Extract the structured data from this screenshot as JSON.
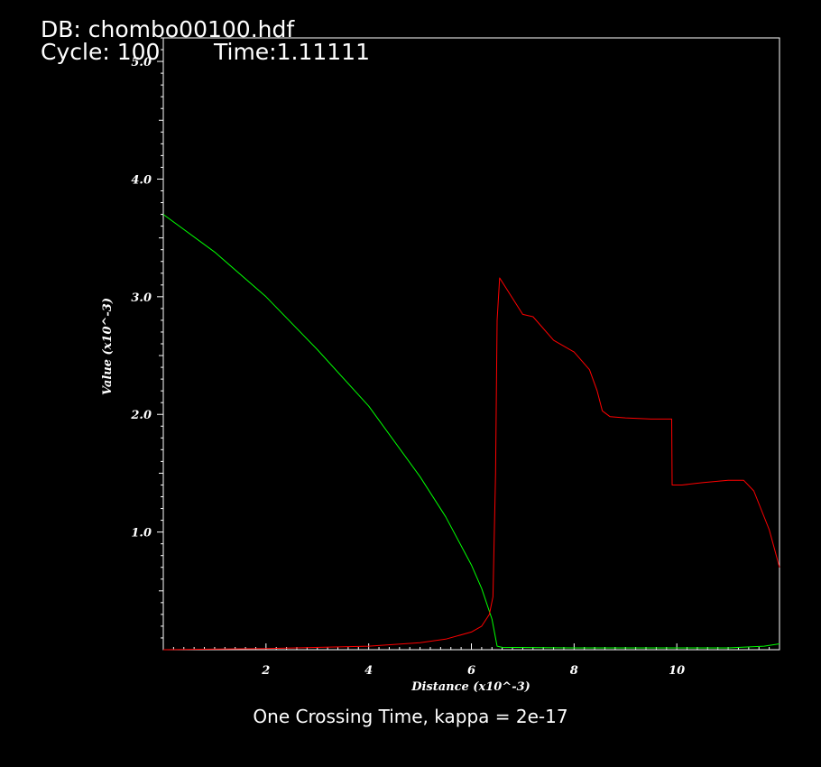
{
  "header": {
    "db_line": "DB: chombo00100.hdf",
    "cycle_line": "Cycle: 100",
    "time_line": "Time:1.11111"
  },
  "caption": "One Crossing Time, kappa = 2e-17",
  "colors": {
    "background": "#000000",
    "axes": "#ffffff",
    "series_red": "#ff0000",
    "series_green": "#00ff00"
  },
  "chart_data": {
    "type": "line",
    "title": "",
    "xlabel": "Distance (x10^-3)",
    "ylabel": "Value (x10^-3)",
    "xlim": [
      0,
      12
    ],
    "ylim": [
      0.0,
      5.2
    ],
    "x_ticks": [
      2,
      4,
      6,
      8,
      10
    ],
    "x_tick_labels": [
      "2",
      "4",
      "6",
      "8",
      "10"
    ],
    "y_ticks": [
      1.0,
      2.0,
      3.0,
      4.0,
      5.0
    ],
    "y_tick_labels": [
      "1.0",
      "2.0",
      "3.0",
      "4.0",
      "5.0"
    ],
    "grid": false,
    "series": [
      {
        "color": "#00ff00",
        "x": [
          0,
          1,
          2,
          3,
          4,
          5,
          5.5,
          6,
          6.2,
          6.4,
          6.5,
          6.6,
          8,
          10,
          11,
          11.7,
          12
        ],
        "y": [
          3.7,
          3.38,
          3.0,
          2.55,
          2.07,
          1.47,
          1.13,
          0.72,
          0.52,
          0.26,
          0.03,
          0.02,
          0.015,
          0.015,
          0.015,
          0.03,
          0.05
        ]
      },
      {
        "color": "#ff0000",
        "x": [
          0,
          2,
          4,
          5,
          5.5,
          6,
          6.2,
          6.35,
          6.42,
          6.47,
          6.5,
          6.55,
          7.0,
          7.2,
          7.3,
          7.6,
          8.0,
          8.3,
          8.45,
          8.55,
          8.7,
          9.0,
          9.5,
          9.9,
          9.91,
          10.1,
          10.5,
          11.0,
          11.3,
          11.5,
          11.8,
          12.0
        ],
        "y": [
          0.0,
          0.01,
          0.03,
          0.06,
          0.09,
          0.15,
          0.2,
          0.3,
          0.45,
          1.5,
          2.8,
          3.16,
          2.85,
          2.83,
          2.78,
          2.63,
          2.53,
          2.38,
          2.2,
          2.03,
          1.98,
          1.97,
          1.96,
          1.96,
          1.4,
          1.4,
          1.42,
          1.44,
          1.44,
          1.35,
          1.02,
          0.7
        ]
      }
    ]
  }
}
